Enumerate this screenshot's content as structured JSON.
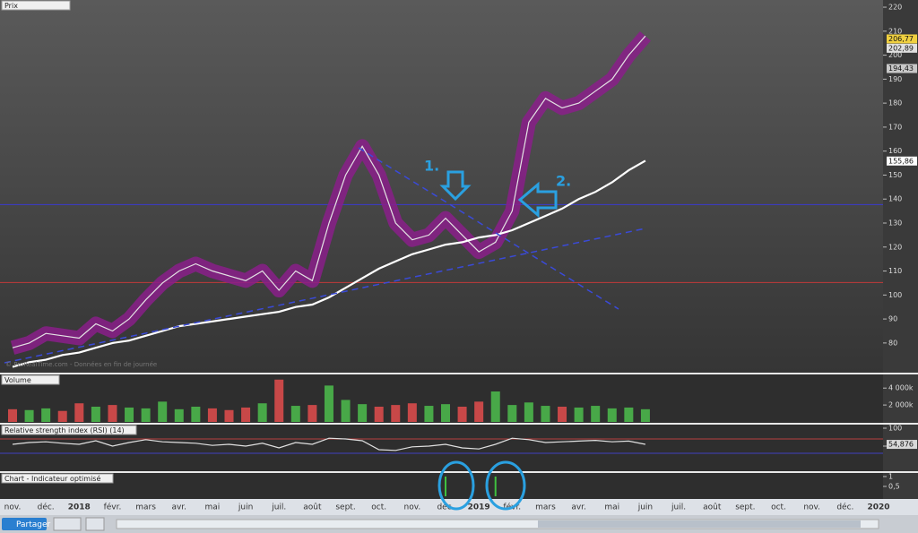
{
  "chart_data": [
    {
      "type": "line",
      "title": "Prix",
      "watermark": "© ProRealTime.com - Données en fin de journée",
      "categories": [
        "nov.",
        null,
        "déc.",
        null,
        "2018",
        null,
        "févr.",
        null,
        "mars",
        null,
        "avr.",
        null,
        "mai",
        null,
        "juin",
        null,
        "juil.",
        null,
        "août",
        null,
        "sept.",
        null,
        "oct.",
        null,
        "nov.",
        null,
        "déc.",
        null,
        "2019",
        null,
        "févr.",
        null,
        "mars",
        null,
        "avr.",
        null,
        "mai",
        null,
        "juin",
        null,
        "juil.",
        null,
        "août",
        null,
        "sept.",
        null,
        "oct.",
        null,
        "nov.",
        null,
        "déc.",
        null,
        "2020"
      ],
      "series": [
        {
          "color": "#e4e4e4",
          "values": [
            78,
            80,
            84,
            83,
            82,
            88,
            85,
            90,
            98,
            105,
            110,
            113,
            110,
            108,
            106,
            110,
            102,
            110,
            106,
            130,
            150,
            162,
            150,
            130,
            123,
            125,
            132,
            125,
            118,
            122,
            135,
            172,
            182,
            178,
            180,
            185,
            190,
            200,
            208,
            null,
            null,
            null,
            null,
            null,
            null,
            null,
            null,
            null,
            null,
            null,
            null,
            null,
            null
          ]
        },
        {
          "color": "#ffffff",
          "values": [
            70,
            72,
            73,
            75,
            76,
            78,
            80,
            81,
            83,
            85,
            87,
            88,
            89,
            90,
            91,
            92,
            93,
            95,
            96,
            99,
            103,
            107,
            111,
            114,
            117,
            119,
            121,
            122,
            124,
            125,
            127,
            130,
            133,
            136,
            140,
            143,
            147,
            152,
            156,
            null,
            null,
            null,
            null,
            null,
            null,
            null,
            null,
            null,
            null,
            null,
            null,
            null,
            null
          ]
        }
      ],
      "ylim": [
        68,
        223
      ],
      "yticks": [
        80,
        90,
        100,
        110,
        120,
        130,
        140,
        150,
        160,
        170,
        180,
        190,
        200,
        210,
        220
      ],
      "reference_lines": [
        {
          "value": 137.7,
          "color": "#3a3ad0"
        },
        {
          "value": 105.2,
          "color": "#c03a3a"
        }
      ],
      "price_labels": [
        {
          "value": 206.77,
          "label": "206,77",
          "color": "#f0d040"
        },
        {
          "value": 202.89,
          "label": "202,89",
          "color": "#e0e0e0"
        },
        {
          "value": 194.43,
          "label": "194,43",
          "color": "#c8c8c8"
        },
        {
          "value": 155.86,
          "label": "155,86",
          "color": "#ffffff"
        }
      ],
      "annotations": [
        "1.",
        "2."
      ]
    },
    {
      "type": "bar",
      "title": "Volume",
      "color": "#c84848",
      "up_color": "#48a848",
      "values": [
        1500000,
        1400000,
        1600000,
        1300000,
        2200000,
        1800000,
        2000000,
        1700000,
        1600000,
        2400000,
        1500000,
        1800000,
        1600000,
        1400000,
        1700000,
        2200000,
        5000000,
        1900000,
        2000000,
        4300000,
        2600000,
        2100000,
        1800000,
        2000000,
        2200000,
        1900000,
        2100000,
        1800000,
        2400000,
        3600000,
        2000000,
        2300000,
        1900000,
        1800000,
        1700000,
        1900000,
        1600000,
        1700000,
        1500000,
        null,
        null,
        null,
        null,
        null,
        null,
        null,
        null,
        null,
        null,
        null,
        null,
        null,
        null
      ],
      "ylim": [
        0,
        5400000
      ],
      "yticks": [
        {
          "value": 2000000,
          "label": "2 000k"
        },
        {
          "value": 4000000,
          "label": "4 000k"
        }
      ]
    },
    {
      "type": "line",
      "title": "Relative strength index (RSI) (14)",
      "color": "#e0e0e0",
      "values": [
        55,
        60,
        62,
        58,
        55,
        65,
        50,
        60,
        68,
        62,
        60,
        58,
        52,
        55,
        50,
        58,
        45,
        60,
        55,
        72,
        70,
        65,
        40,
        38,
        48,
        50,
        55,
        45,
        42,
        55,
        72,
        68,
        60,
        62,
        64,
        66,
        62,
        64,
        55,
        null,
        null,
        null,
        null,
        null,
        null,
        null,
        null,
        null,
        null,
        null,
        null,
        null,
        null
      ],
      "ylim": [
        -20,
        110
      ],
      "yticks": [
        50,
        100
      ],
      "levels": [
        {
          "value": 70,
          "color": "#b84040"
        },
        {
          "value": 30,
          "color": "#4040c0"
        }
      ],
      "last": {
        "value": 54.876,
        "label": "54,876"
      }
    },
    {
      "type": "bar",
      "title": "Chart - Indicateur optimisé",
      "color": "#40c040",
      "values": [
        0,
        0,
        0,
        0,
        0,
        0,
        0,
        0,
        0,
        0,
        0,
        0,
        0,
        0,
        0,
        0,
        0,
        0,
        0,
        0,
        0,
        0,
        0,
        0,
        0,
        0,
        1,
        0,
        0,
        1,
        0,
        0,
        0,
        0,
        0,
        0,
        0,
        0,
        0,
        null,
        null,
        null,
        null,
        null,
        null,
        null,
        null,
        null,
        null,
        null,
        null,
        null,
        null
      ],
      "ylim": [
        0,
        1.18
      ],
      "yticks": [
        1,
        {
          "value": 0.5,
          "label": "0,5"
        }
      ]
    }
  ],
  "ui": {
    "share_button": "Partager"
  }
}
